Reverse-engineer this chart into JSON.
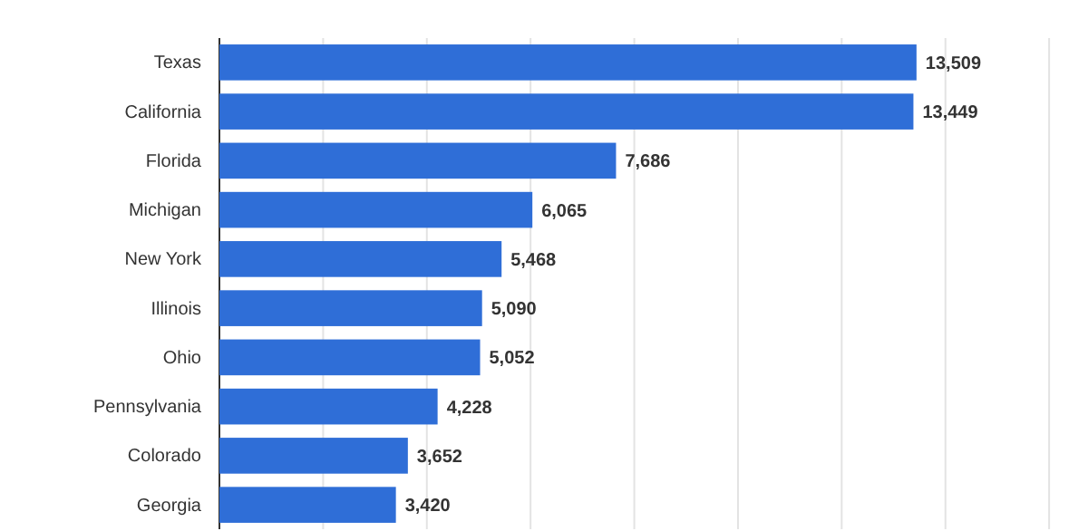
{
  "chart_data": {
    "type": "bar",
    "orientation": "horizontal",
    "categories": [
      "Texas",
      "California",
      "Florida",
      "Michigan",
      "New York",
      "Illinois",
      "Ohio",
      "Pennsylvania",
      "Colorado",
      "Georgia"
    ],
    "values": [
      13509,
      13449,
      7686,
      6065,
      5468,
      5090,
      5052,
      4228,
      3652,
      3420
    ],
    "value_labels": [
      "13,509",
      "13,449",
      "7,686",
      "6,065",
      "5,468",
      "5,090",
      "5,052",
      "4,228",
      "3,652",
      "3,420"
    ],
    "color": "#2f6ed7",
    "grid": "x",
    "tick_labels": "y"
  }
}
